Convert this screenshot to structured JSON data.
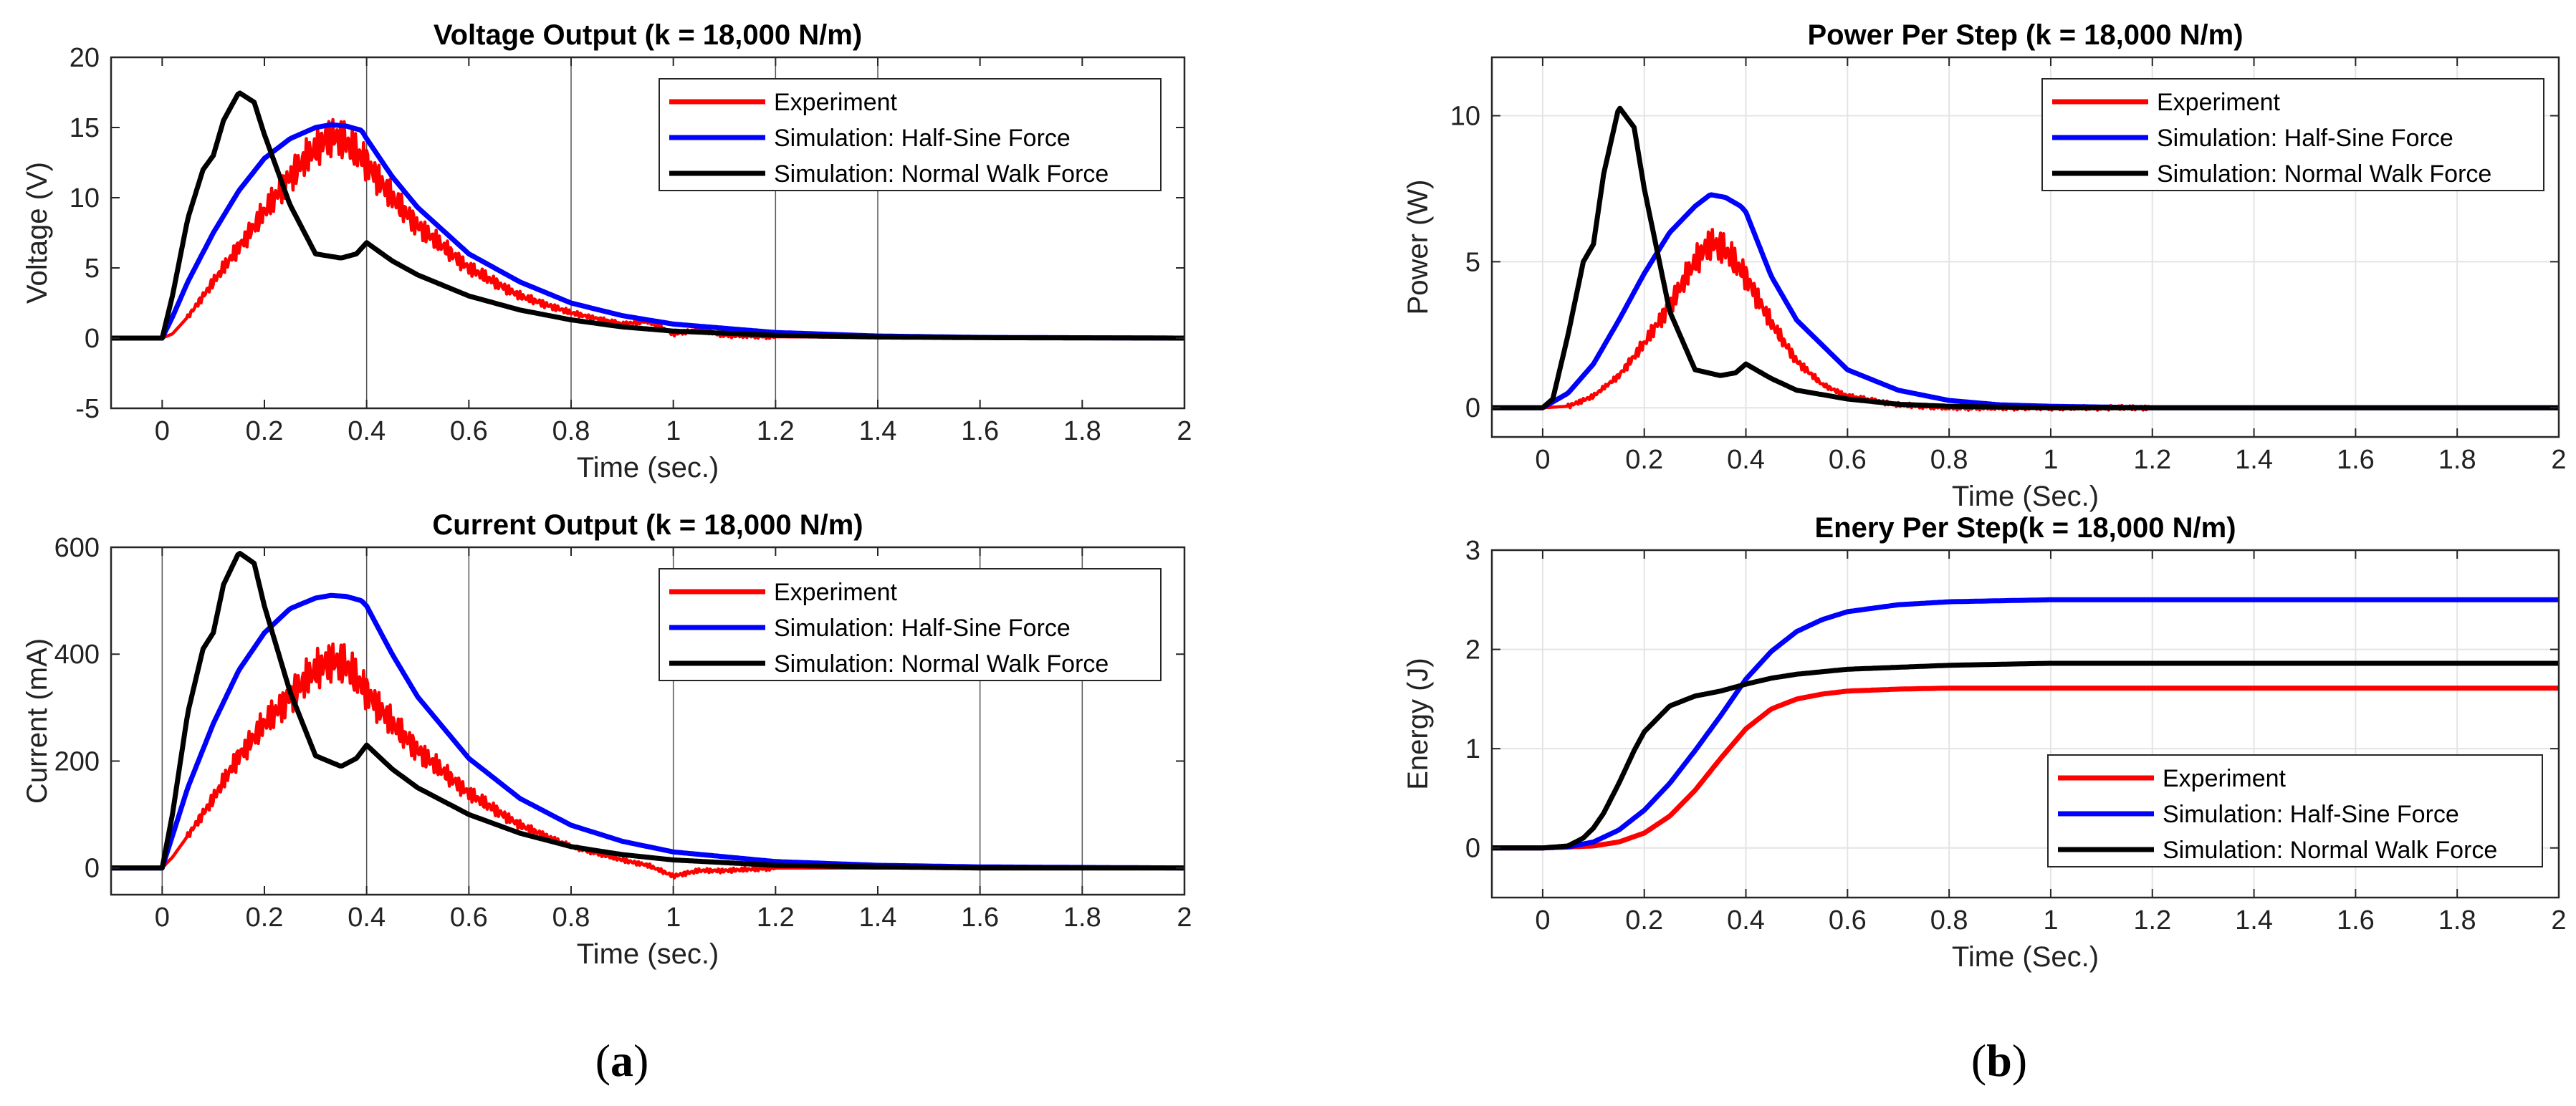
{
  "chart_data": [
    {
      "id": "voltage",
      "type": "line",
      "title": "Voltage Output (k = 18,000 N/m)",
      "xlabel": "Time (sec.)",
      "ylabel": "Voltage (V)",
      "xlim": [
        -0.1,
        2
      ],
      "ylim": [
        -5,
        20
      ],
      "xticks": [
        0,
        0.2,
        0.4,
        0.6,
        0.8,
        1,
        1.2,
        1.4,
        1.6,
        1.8,
        2
      ],
      "xtick_labels": [
        "0",
        "0.2",
        "0.4",
        "0.6",
        "0.8",
        "1",
        "1.2",
        "1.4",
        "1.6",
        "1.8",
        "2"
      ],
      "yticks": [
        -5,
        0,
        5,
        10,
        15,
        20
      ],
      "ytick_labels": [
        "-5",
        "0",
        "5",
        "10",
        "15",
        "20"
      ],
      "grid": false,
      "vlines": [
        0.4,
        0.8,
        1.2,
        1.4
      ],
      "legend_position": "top-right",
      "series": [
        {
          "name": "Experiment",
          "color": "#ff0000",
          "noisy": true,
          "x": [
            -0.1,
            0.0,
            0.02,
            0.05,
            0.1,
            0.15,
            0.2,
            0.25,
            0.3,
            0.33,
            0.36,
            0.4,
            0.45,
            0.5,
            0.6,
            0.7,
            0.8,
            0.9,
            0.95,
            1.0,
            1.05,
            1.1,
            1.2,
            1.4,
            1.6,
            2.0
          ],
          "y": [
            0,
            0,
            0.3,
            1.5,
            4,
            6.5,
            9,
            11.5,
            13.5,
            14.5,
            14,
            12.5,
            10,
            8,
            5,
            3,
            1.8,
            1,
            1.2,
            0.3,
            0.6,
            0.2,
            0.1,
            0.05,
            0,
            0
          ]
        },
        {
          "name": "Simulation: Half-Sine Force",
          "color": "#0000ff",
          "x": [
            -0.1,
            0.0,
            0.02,
            0.05,
            0.1,
            0.15,
            0.2,
            0.25,
            0.3,
            0.33,
            0.36,
            0.39,
            0.4,
            0.45,
            0.5,
            0.6,
            0.7,
            0.8,
            0.9,
            1.0,
            1.2,
            1.4,
            1.6,
            2.0
          ],
          "y": [
            0,
            0,
            1.5,
            4,
            7.5,
            10.5,
            12.8,
            14.2,
            15,
            15.2,
            15.1,
            14.8,
            14.2,
            11.5,
            9.3,
            6,
            4,
            2.5,
            1.6,
            1,
            0.4,
            0.15,
            0.05,
            0
          ]
        },
        {
          "name": "Simulation: Normal Walk Force",
          "color": "#000000",
          "x": [
            -0.1,
            0.0,
            0.02,
            0.05,
            0.08,
            0.1,
            0.12,
            0.15,
            0.18,
            0.2,
            0.25,
            0.3,
            0.35,
            0.38,
            0.4,
            0.45,
            0.5,
            0.6,
            0.7,
            0.8,
            0.9,
            1.0,
            1.2,
            1.4,
            1.6,
            2.0
          ],
          "y": [
            0,
            0,
            3,
            8.5,
            12,
            13,
            15.5,
            17.5,
            16.8,
            14.5,
            9.5,
            6,
            5.7,
            6,
            6.8,
            5.5,
            4.5,
            3,
            2,
            1.3,
            0.8,
            0.5,
            0.2,
            0.08,
            0.03,
            0
          ]
        }
      ]
    },
    {
      "id": "current",
      "type": "line",
      "title": "Current Output (k = 18,000 N/m)",
      "xlabel": "Time (sec.)",
      "ylabel": "Current (mA)",
      "xlim": [
        -0.1,
        2
      ],
      "ylim": [
        -50,
        600
      ],
      "xticks": [
        0,
        0.2,
        0.4,
        0.6,
        0.8,
        1,
        1.2,
        1.4,
        1.6,
        1.8,
        2
      ],
      "xtick_labels": [
        "0",
        "0.2",
        "0.4",
        "0.6",
        "0.8",
        "1",
        "1.2",
        "1.4",
        "1.6",
        "1.8",
        "2"
      ],
      "yticks": [
        0,
        200,
        400,
        600
      ],
      "ytick_labels": [
        "0",
        "200",
        "400",
        "600"
      ],
      "grid": false,
      "vlines": [
        0,
        0.4,
        0.6,
        1.0,
        1.6,
        1.8
      ],
      "legend_position": "top-right",
      "series": [
        {
          "name": "Experiment",
          "color": "#ff0000",
          "noisy": true,
          "x": [
            -0.1,
            0.0,
            0.02,
            0.05,
            0.1,
            0.15,
            0.2,
            0.25,
            0.3,
            0.33,
            0.36,
            0.4,
            0.45,
            0.5,
            0.6,
            0.7,
            0.8,
            0.9,
            0.95,
            1.0,
            1.05,
            1.1,
            1.2,
            1.4,
            1.6,
            2.0
          ],
          "y": [
            0,
            0,
            20,
            60,
            130,
            210,
            270,
            320,
            370,
            390,
            380,
            330,
            270,
            220,
            140,
            80,
            40,
            15,
            5,
            -15,
            -5,
            -5,
            0,
            0,
            0,
            0
          ]
        },
        {
          "name": "Simulation: Half-Sine Force",
          "color": "#0000ff",
          "x": [
            -0.1,
            0.0,
            0.02,
            0.05,
            0.1,
            0.15,
            0.2,
            0.25,
            0.3,
            0.33,
            0.36,
            0.39,
            0.4,
            0.45,
            0.5,
            0.6,
            0.7,
            0.8,
            0.9,
            1.0,
            1.2,
            1.4,
            1.6,
            2.0
          ],
          "y": [
            0,
            0,
            60,
            150,
            270,
            370,
            440,
            485,
            505,
            510,
            508,
            500,
            490,
            400,
            320,
            205,
            130,
            80,
            50,
            30,
            12,
            5,
            2,
            0
          ]
        },
        {
          "name": "Simulation: Normal Walk Force",
          "color": "#000000",
          "x": [
            -0.1,
            0.0,
            0.02,
            0.05,
            0.08,
            0.1,
            0.12,
            0.15,
            0.18,
            0.2,
            0.25,
            0.3,
            0.35,
            0.38,
            0.4,
            0.45,
            0.5,
            0.6,
            0.7,
            0.8,
            0.9,
            1.0,
            1.2,
            1.4,
            1.6,
            2.0
          ],
          "y": [
            0,
            0,
            100,
            290,
            410,
            440,
            530,
            590,
            570,
            490,
            330,
            210,
            190,
            205,
            230,
            185,
            150,
            100,
            65,
            40,
            25,
            15,
            5,
            2,
            0,
            0
          ]
        }
      ]
    },
    {
      "id": "power",
      "type": "line",
      "title": "Power Per Step (k = 18,000 N/m)",
      "xlabel": "Time (Sec.)",
      "ylabel": "Power (W)",
      "xlim": [
        -0.1,
        2
      ],
      "ylim": [
        -1,
        12
      ],
      "xticks": [
        0,
        0.2,
        0.4,
        0.6,
        0.8,
        1,
        1.2,
        1.4,
        1.6,
        1.8,
        2
      ],
      "xtick_labels": [
        "0",
        "0.2",
        "0.4",
        "0.6",
        "0.8",
        "1",
        "1.2",
        "1.4",
        "1.6",
        "1.8",
        "2"
      ],
      "yticks": [
        0,
        5,
        10
      ],
      "ytick_labels": [
        "0",
        "5",
        "10"
      ],
      "grid": true,
      "legend_position": "top-right",
      "series": [
        {
          "name": "Experiment",
          "color": "#ff0000",
          "noisy": true,
          "x": [
            -0.1,
            0.0,
            0.05,
            0.1,
            0.15,
            0.2,
            0.25,
            0.3,
            0.33,
            0.36,
            0.4,
            0.45,
            0.5,
            0.55,
            0.6,
            0.7,
            0.8,
            1.0,
            2.0
          ],
          "y": [
            0,
            0,
            0.05,
            0.4,
            1.1,
            2.2,
            3.5,
            5,
            5.7,
            5.4,
            4.5,
            2.9,
            1.6,
            0.8,
            0.4,
            0.1,
            0,
            0,
            0
          ]
        },
        {
          "name": "Simulation: Half-Sine Force",
          "color": "#0000ff",
          "x": [
            -0.1,
            0.0,
            0.05,
            0.1,
            0.15,
            0.2,
            0.25,
            0.3,
            0.33,
            0.36,
            0.39,
            0.4,
            0.45,
            0.5,
            0.6,
            0.7,
            0.8,
            0.9,
            1.0,
            1.2,
            2.0
          ],
          "y": [
            0,
            0,
            0.5,
            1.5,
            3,
            4.6,
            6,
            6.9,
            7.3,
            7.2,
            6.9,
            6.7,
            4.5,
            3,
            1.3,
            0.6,
            0.25,
            0.1,
            0.05,
            0,
            0
          ]
        },
        {
          "name": "Simulation: Normal Walk Force",
          "color": "#000000",
          "x": [
            -0.1,
            0.0,
            0.02,
            0.05,
            0.08,
            0.1,
            0.12,
            0.15,
            0.18,
            0.2,
            0.25,
            0.3,
            0.35,
            0.38,
            0.4,
            0.45,
            0.5,
            0.6,
            0.7,
            0.8,
            1.0,
            2.0
          ],
          "y": [
            0,
            0,
            0.3,
            2.5,
            5,
            5.6,
            8,
            10.3,
            9.6,
            7.5,
            3.3,
            1.3,
            1.1,
            1.2,
            1.5,
            1,
            0.6,
            0.3,
            0.12,
            0.05,
            0,
            0
          ]
        }
      ]
    },
    {
      "id": "energy",
      "type": "line",
      "title": "Enery Per Step(k = 18,000 N/m)",
      "xlabel": "Time (Sec.)",
      "ylabel": "Energy (J)",
      "xlim": [
        -0.1,
        2
      ],
      "ylim": [
        -0.5,
        3
      ],
      "xticks": [
        0,
        0.2,
        0.4,
        0.6,
        0.8,
        1,
        1.2,
        1.4,
        1.6,
        1.8,
        2
      ],
      "xtick_labels": [
        "0",
        "0.2",
        "0.4",
        "0.6",
        "0.8",
        "1",
        "1.2",
        "1.4",
        "1.6",
        "1.8",
        "2"
      ],
      "yticks": [
        0,
        1,
        2,
        3
      ],
      "ytick_labels": [
        "0",
        "1",
        "2",
        "3"
      ],
      "grid": true,
      "legend_position": "bottom-right",
      "series": [
        {
          "name": "Experiment",
          "color": "#ff0000",
          "x": [
            -0.1,
            0.0,
            0.1,
            0.15,
            0.2,
            0.25,
            0.3,
            0.35,
            0.4,
            0.45,
            0.5,
            0.55,
            0.6,
            0.7,
            0.8,
            1.0,
            2.0
          ],
          "y": [
            0,
            0,
            0.02,
            0.06,
            0.15,
            0.32,
            0.58,
            0.9,
            1.2,
            1.4,
            1.5,
            1.55,
            1.58,
            1.6,
            1.61,
            1.61,
            1.61
          ]
        },
        {
          "name": "Simulation: Half-Sine Force",
          "color": "#0000ff",
          "x": [
            -0.1,
            0.0,
            0.05,
            0.1,
            0.15,
            0.2,
            0.25,
            0.3,
            0.35,
            0.4,
            0.45,
            0.5,
            0.55,
            0.6,
            0.7,
            0.8,
            1.0,
            2.0
          ],
          "y": [
            0,
            0,
            0.01,
            0.06,
            0.18,
            0.38,
            0.65,
            0.98,
            1.33,
            1.7,
            1.98,
            2.18,
            2.3,
            2.38,
            2.45,
            2.48,
            2.5,
            2.5
          ]
        },
        {
          "name": "Simulation: Normal Walk Force",
          "color": "#000000",
          "x": [
            -0.1,
            0.0,
            0.05,
            0.08,
            0.1,
            0.12,
            0.15,
            0.18,
            0.2,
            0.25,
            0.3,
            0.35,
            0.4,
            0.45,
            0.5,
            0.6,
            0.8,
            1.0,
            2.0
          ],
          "y": [
            0,
            0,
            0.02,
            0.1,
            0.2,
            0.35,
            0.65,
            0.98,
            1.17,
            1.43,
            1.53,
            1.58,
            1.65,
            1.71,
            1.75,
            1.8,
            1.84,
            1.86,
            1.86
          ]
        }
      ]
    }
  ],
  "captions": {
    "a": {
      "open": "(",
      "letter": "a",
      "close": ")"
    },
    "b": {
      "open": "(",
      "letter": "b",
      "close": ")"
    }
  }
}
